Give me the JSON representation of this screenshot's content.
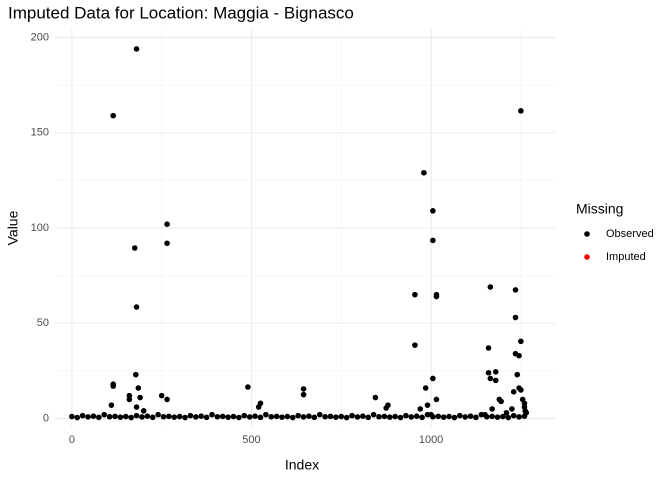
{
  "chart_data": {
    "type": "scatter",
    "title": "Imputed Data for Location: Maggia - Bignasco",
    "x_label": "Index",
    "y_label": "Value",
    "legend_title": "Missing",
    "legend_position": "right",
    "grid": true,
    "xlim": [
      -47,
      1345
    ],
    "ylim": [
      -5,
      205
    ],
    "xticks": [
      0,
      500,
      1000
    ],
    "yticks": [
      0,
      50,
      100,
      150,
      200
    ],
    "x_minor_ticks": [
      250,
      750,
      1250
    ],
    "y_minor_ticks": [
      25,
      75,
      125,
      175
    ],
    "series": [
      {
        "name": "Observed",
        "color": "#000000",
        "x": [
          115,
          180,
          175,
          180,
          178,
          265,
          265,
          115,
          115,
          160,
          160,
          185,
          190,
          250,
          265,
          110,
          180,
          200,
          490,
          520,
          525,
          645,
          645,
          845,
          875,
          880,
          955,
          955,
          980,
          985,
          1005,
          1005,
          1005,
          1015,
          1015,
          1015,
          1165,
          1160,
          1160,
          1165,
          1180,
          1180,
          1190,
          1195,
          1235,
          1235,
          1235,
          1240,
          1245,
          1250,
          1250,
          1245,
          1250,
          1255,
          1260,
          1260,
          1262,
          1265,
          1230,
          1225,
          1210,
          1170,
          1150,
          990,
          970,
          1000,
          0,
          15,
          30,
          45,
          60,
          75,
          90,
          105,
          120,
          135,
          150,
          165,
          180,
          195,
          210,
          225,
          240,
          255,
          270,
          285,
          300,
          315,
          330,
          345,
          360,
          375,
          390,
          405,
          420,
          435,
          450,
          465,
          480,
          495,
          510,
          525,
          540,
          555,
          570,
          585,
          600,
          615,
          630,
          645,
          660,
          675,
          690,
          705,
          720,
          735,
          750,
          765,
          780,
          795,
          810,
          825,
          840,
          855,
          870,
          885,
          900,
          915,
          930,
          945,
          960,
          975,
          990,
          1005,
          1020,
          1035,
          1050,
          1065,
          1080,
          1095,
          1110,
          1125,
          1140,
          1155,
          1170,
          1185,
          1200,
          1215,
          1230,
          1245,
          1260
        ],
        "values": [
          159,
          194,
          89.5,
          58.5,
          23,
          102,
          92,
          17,
          18,
          12,
          10,
          16,
          11,
          12,
          10,
          7,
          6,
          4,
          16.5,
          6,
          8,
          15.5,
          12.5,
          11,
          5.5,
          7,
          65,
          38.5,
          129,
          16,
          109,
          93.5,
          21,
          65,
          64,
          10,
          69,
          37,
          24,
          21,
          24.5,
          20,
          10,
          9,
          67.5,
          53,
          34,
          23,
          33,
          161.5,
          40.5,
          16,
          15,
          10,
          8,
          6,
          4,
          3,
          14,
          5,
          3,
          5,
          2,
          7,
          5,
          2,
          1,
          0.5,
          1.5,
          0.8,
          1.2,
          0.6,
          2,
          0.9,
          1.1,
          0.7,
          1,
          0.5,
          1.5,
          0.8,
          1.2,
          0.6,
          2,
          0.9,
          1.1,
          0.7,
          1,
          0.5,
          1.5,
          0.8,
          1.2,
          0.6,
          2,
          0.9,
          1.1,
          0.7,
          1,
          0.5,
          1.5,
          0.8,
          1.2,
          0.6,
          2,
          0.9,
          1.1,
          0.7,
          1,
          0.5,
          1.5,
          0.8,
          1.2,
          0.6,
          2,
          0.9,
          1.1,
          0.7,
          1,
          0.5,
          1.5,
          0.8,
          1.2,
          0.6,
          2,
          0.9,
          1.1,
          0.7,
          1,
          0.5,
          1.5,
          0.8,
          1.2,
          0.6,
          2,
          0.9,
          1.1,
          0.7,
          1,
          0.5,
          1.5,
          0.8,
          1.2,
          0.6,
          2,
          0.9,
          1.1,
          0.7,
          1,
          0.5,
          1.5,
          0.8,
          1.2
        ]
      },
      {
        "name": "Imputed",
        "color": "#ff0000",
        "x": [],
        "values": []
      }
    ]
  }
}
